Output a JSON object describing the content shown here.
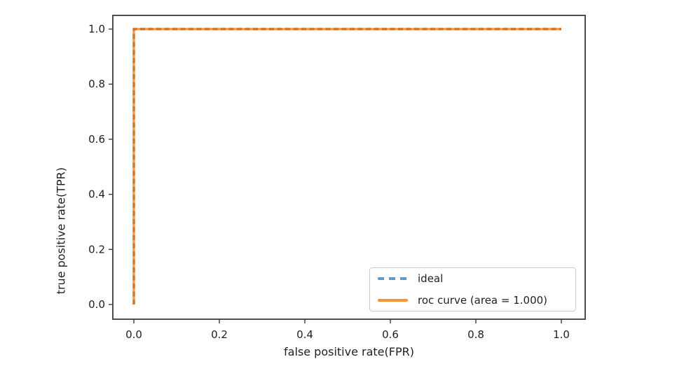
{
  "chart_data": {
    "type": "line",
    "title": "",
    "xlabel": "false positive rate(FPR)",
    "ylabel": "true positive rate(TPR)",
    "xlim": [
      -0.05,
      1.056
    ],
    "ylim": [
      -0.053,
      1.05
    ],
    "grid": false,
    "x_ticks": [
      "0.0",
      "0.2",
      "0.4",
      "0.6",
      "0.8",
      "1.0"
    ],
    "y_ticks": [
      "0.0",
      "0.2",
      "0.4",
      "0.6",
      "0.8",
      "1.0"
    ],
    "series": [
      {
        "name": "ideal",
        "style": "dashed",
        "color": "#5b9bd5",
        "points": [
          [
            0,
            0
          ],
          [
            0,
            1
          ],
          [
            1,
            1
          ]
        ]
      },
      {
        "name": "roc curve (area = 1.000)",
        "style": "solid",
        "color": "#f89a47",
        "points": [
          [
            0,
            0
          ],
          [
            0,
            1
          ],
          [
            1,
            1
          ]
        ]
      }
    ],
    "auc": "1.000",
    "overlap_dash_color": "#cb7a33",
    "legend": {
      "position": "lower right",
      "entries": [
        "ideal",
        "roc curve (area = 1.000)"
      ]
    }
  },
  "colors": {
    "background": "#ffffff",
    "spine": "#3b3b3b",
    "text": "#1f1f1f",
    "ideal_blue": "#5b9bd5",
    "roc_orange": "#f89a47",
    "overlap_dash": "#cb7a33",
    "legend_orange": "#fc9332",
    "legend_border": "#cccccc"
  }
}
